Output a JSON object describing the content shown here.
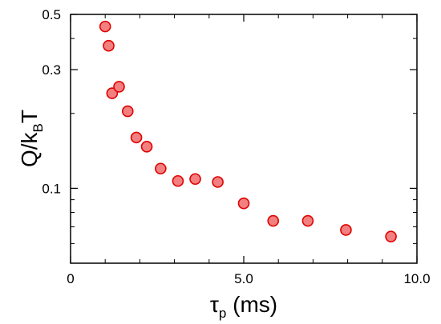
{
  "chart_data": {
    "type": "scatter",
    "title": "",
    "xlabel": {
      "main": "τ",
      "sub": "p",
      "rest": " (ms)"
    },
    "ylabel": {
      "main": "Q/k",
      "sub": "B",
      "rest": "T"
    },
    "xlim": [
      0,
      10
    ],
    "ylim": [
      0.05,
      0.5
    ],
    "yscale": "log",
    "x_ticks": [
      {
        "value": 0,
        "label": "0"
      },
      {
        "value": 5,
        "label": "5.0"
      },
      {
        "value": 10,
        "label": "10.0"
      }
    ],
    "y_ticks": [
      {
        "value": 0.1,
        "label": "0.1"
      },
      {
        "value": 0.3,
        "label": "0.3"
      },
      {
        "value": 0.5,
        "label": "0.5"
      }
    ],
    "grid": false,
    "marker": {
      "fill": "#f28080",
      "stroke": "#e00000"
    },
    "series": [
      {
        "x": [
          1.0,
          1.1,
          1.2,
          1.4,
          1.65,
          1.9,
          2.2,
          2.6,
          3.1,
          3.6,
          4.25,
          5.0,
          5.85,
          6.85,
          7.95,
          9.25
        ],
        "y": [
          0.447,
          0.374,
          0.241,
          0.256,
          0.204,
          0.16,
          0.147,
          0.12,
          0.107,
          0.109,
          0.106,
          0.087,
          0.074,
          0.074,
          0.068,
          0.064
        ]
      }
    ]
  }
}
